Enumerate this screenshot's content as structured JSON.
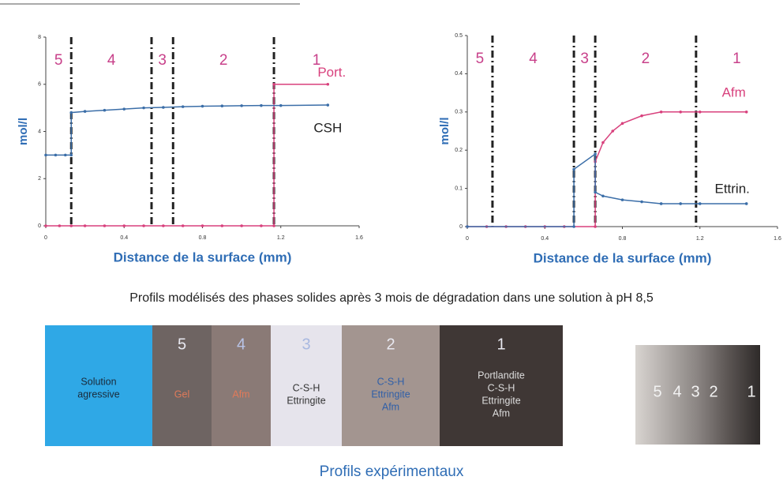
{
  "chart_data": [
    {
      "type": "line",
      "xlabel": "Distance de la surface (mm)",
      "ylabel": "mol/l",
      "xlim": [
        0,
        1.6
      ],
      "ylim": [
        0,
        8
      ],
      "xticks": [
        0,
        0.4,
        0.8,
        1.2,
        1.6
      ],
      "yticks": [
        0,
        2,
        4,
        6,
        8
      ],
      "boundaries": [
        0.13,
        0.54,
        0.65,
        1.165
      ],
      "zone_labels": [
        "5",
        "4",
        "3",
        "2",
        "1"
      ],
      "series": [
        {
          "name": "Port.",
          "color": "#d8417d",
          "label_color": "#d8417d",
          "x": [
            0,
            0.07,
            0.13,
            0.2,
            0.3,
            0.4,
            0.5,
            0.6,
            0.7,
            0.8,
            0.9,
            1.0,
            1.1,
            1.165,
            1.165,
            1.44
          ],
          "values": [
            0,
            0,
            0,
            0,
            0,
            0,
            0,
            0,
            0,
            0,
            0,
            0,
            0,
            0,
            6.0,
            6.0
          ]
        },
        {
          "name": "CSH",
          "color": "#3b6ea8",
          "label_color": "#222222",
          "x": [
            0,
            0.05,
            0.1,
            0.13,
            0.13,
            0.2,
            0.3,
            0.4,
            0.5,
            0.6,
            0.7,
            0.8,
            0.9,
            1.0,
            1.1,
            1.2,
            1.44
          ],
          "values": [
            3,
            3,
            3,
            3,
            4.8,
            4.85,
            4.9,
            4.95,
            5.0,
            5.02,
            5.05,
            5.07,
            5.08,
            5.09,
            5.1,
            5.1,
            5.12
          ]
        }
      ]
    },
    {
      "type": "line",
      "xlabel": "Distance de la surface (mm)",
      "ylabel": "mol/l",
      "xlim": [
        0,
        1.6
      ],
      "ylim": [
        0,
        0.5
      ],
      "xticks": [
        0,
        0.4,
        0.8,
        1.2,
        1.6
      ],
      "yticks": [
        0,
        0.1,
        0.2,
        0.3,
        0.4,
        0.5
      ],
      "boundaries": [
        0.13,
        0.55,
        0.66,
        1.18
      ],
      "zone_labels": [
        "5",
        "4",
        "3",
        "2",
        "1"
      ],
      "series": [
        {
          "name": "Afm",
          "color": "#d8417d",
          "label_color": "#d8417d",
          "x": [
            0,
            0.1,
            0.2,
            0.3,
            0.4,
            0.5,
            0.66,
            0.66,
            0.7,
            0.75,
            0.8,
            0.9,
            1.0,
            1.1,
            1.2,
            1.44
          ],
          "values": [
            0,
            0,
            0,
            0,
            0,
            0,
            0,
            0.17,
            0.22,
            0.25,
            0.27,
            0.29,
            0.3,
            0.3,
            0.3,
            0.3
          ]
        },
        {
          "name": "Ettrin.",
          "color": "#3b6ea8",
          "label_color": "#222222",
          "x": [
            0,
            0.55,
            0.55,
            0.66,
            0.66,
            0.7,
            0.8,
            0.9,
            1.0,
            1.1,
            1.2,
            1.44
          ],
          "values": [
            0,
            0,
            0.15,
            0.19,
            0.09,
            0.08,
            0.07,
            0.065,
            0.06,
            0.06,
            0.06,
            0.06
          ]
        }
      ]
    }
  ],
  "caption": "Profils modélisés des phases solides après 3 mois de dégradation dans une solution à pH 8,5",
  "zones": [
    {
      "lines": [
        "Solution",
        "agressive"
      ],
      "color": "#2fa8e6",
      "text_color": "#1a2a3a"
    },
    {
      "number": "5",
      "lines": [
        "Gel"
      ],
      "color": "#6e6462",
      "text_color": "#e07a5a"
    },
    {
      "number": "4",
      "lines": [
        "Afm"
      ],
      "color": "#8a7a76",
      "text_color": "#e07a5a"
    },
    {
      "number": "3",
      "lines": [
        "C-S-H",
        "Ettringite"
      ],
      "color": "#e6e4ec",
      "text_color": "#333333"
    },
    {
      "number": "2",
      "lines": [
        "C-S-H",
        "Ettringite",
        "Afm"
      ],
      "color": "#a39590",
      "text_color": "#2f5fa8"
    },
    {
      "number": "1",
      "lines": [
        "Portlandite",
        "C-S-H",
        "Ettringite",
        "Afm"
      ],
      "color": "#3f3735",
      "text_color": "#dddddd"
    }
  ],
  "photo_labels": [
    "5",
    "4",
    "3",
    "2",
    "1"
  ],
  "footer": "Profils expérimentaux"
}
